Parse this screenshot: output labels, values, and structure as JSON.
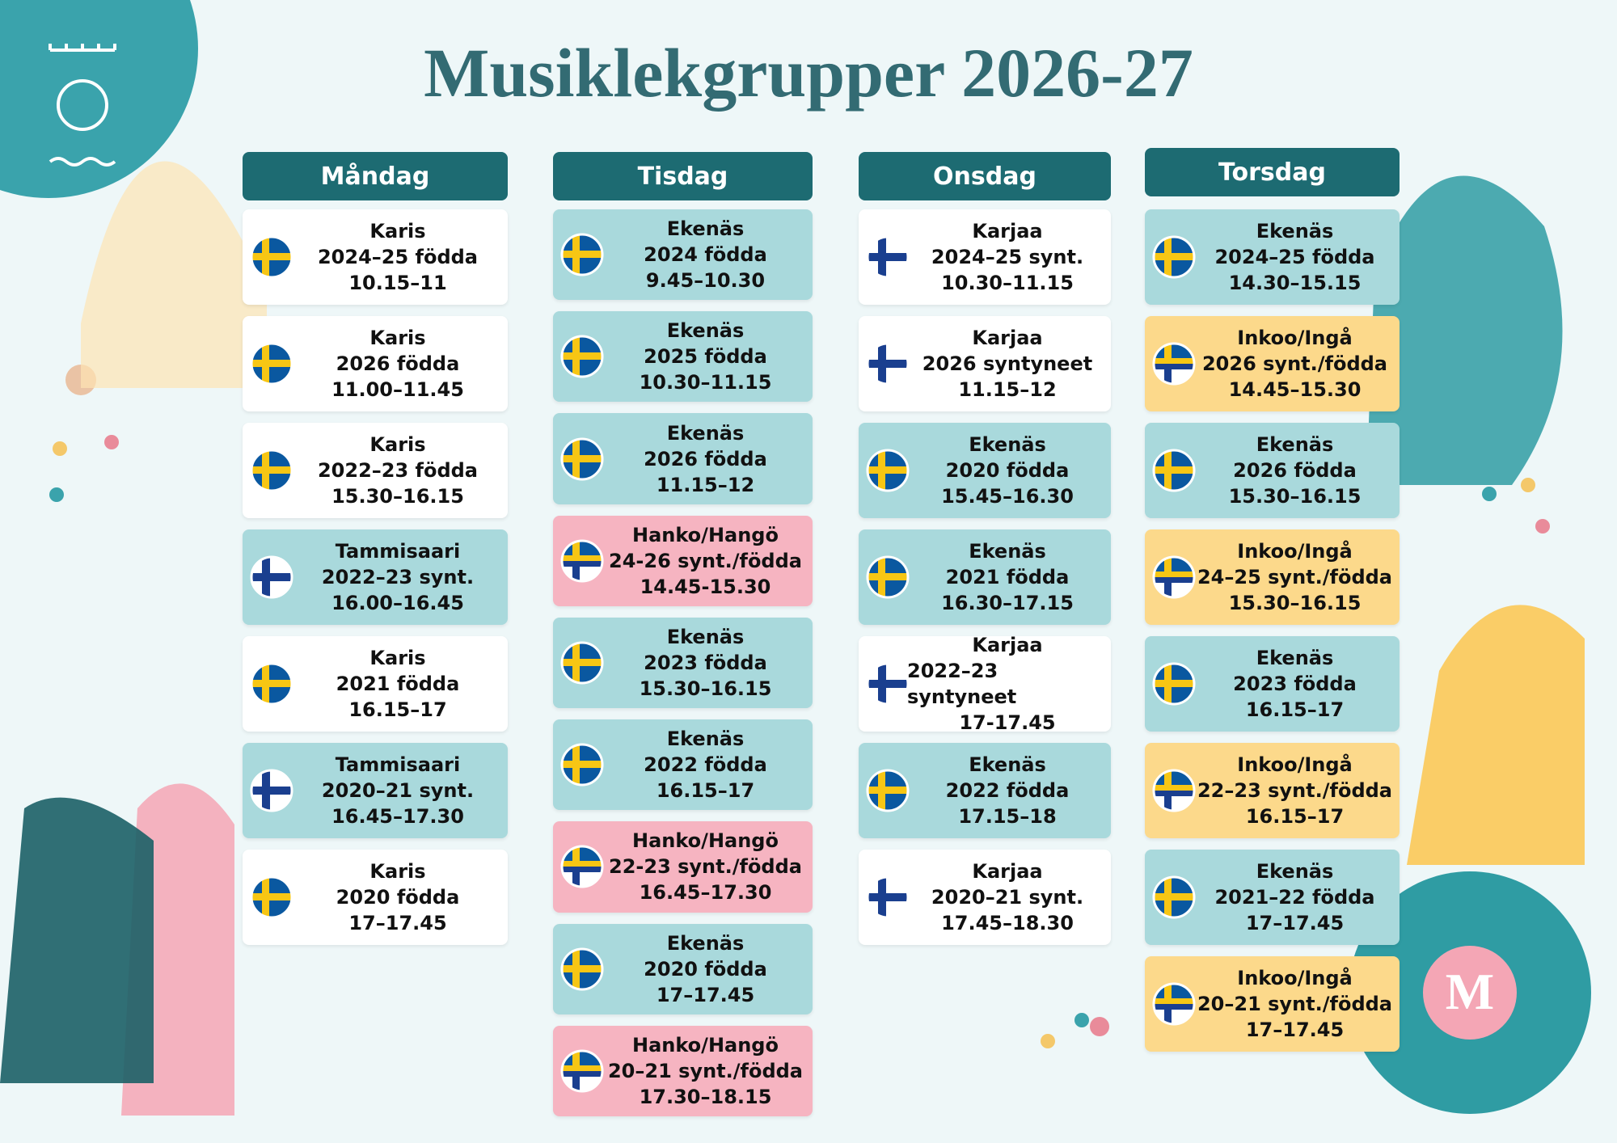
{
  "title": "Musiklekgrupper 2026-27",
  "logo_letter": "M",
  "days": [
    {
      "name": "Måndag",
      "groups": [
        {
          "place": "Karis",
          "group": "2024–25 födda",
          "time": "10.15–11",
          "flag": "sv",
          "color": "#ffffff"
        },
        {
          "place": "Karis",
          "group": "2026 födda",
          "time": "11.00–11.45",
          "flag": "sv",
          "color": "#ffffff"
        },
        {
          "place": "Karis",
          "group": "2022–23 födda",
          "time": "15.30–16.15",
          "flag": "sv",
          "color": "#ffffff"
        },
        {
          "place": "Tammisaari",
          "group": "2022–23 synt.",
          "time": "16.00–16.45",
          "flag": "fi",
          "color": "#a9d9dc"
        },
        {
          "place": "Karis",
          "group": "2021 födda",
          "time": "16.15–17",
          "flag": "sv",
          "color": "#ffffff"
        },
        {
          "place": "Tammisaari",
          "group": "2020–21 synt.",
          "time": "16.45–17.30",
          "flag": "fi",
          "color": "#a9d9dc"
        },
        {
          "place": "Karis",
          "group": "2020 födda",
          "time": "17–17.45",
          "flag": "sv",
          "color": "#ffffff"
        }
      ]
    },
    {
      "name": "Tisdag",
      "groups": [
        {
          "place": "Ekenäs",
          "group": "2024 födda",
          "time": "9.45–10.30",
          "flag": "sv",
          "color": "#a9d9dc"
        },
        {
          "place": "Ekenäs",
          "group": "2025 födda",
          "time": "10.30–11.15",
          "flag": "sv",
          "color": "#a9d9dc"
        },
        {
          "place": "Ekenäs",
          "group": "2026 födda",
          "time": "11.15–12",
          "flag": "sv",
          "color": "#a9d9dc"
        },
        {
          "place": "Hanko/Hangö",
          "group": "24-26 synt./födda",
          "time": "14.45-15.30",
          "flag": "mixed",
          "color": "#f6b4c1"
        },
        {
          "place": "Ekenäs",
          "group": "2023 födda",
          "time": "15.30–16.15",
          "flag": "sv",
          "color": "#a9d9dc"
        },
        {
          "place": "Ekenäs",
          "group": "2022 födda",
          "time": "16.15–17",
          "flag": "sv",
          "color": "#a9d9dc"
        },
        {
          "place": "Hanko/Hangö",
          "group": "22-23 synt./födda",
          "time": "16.45–17.30",
          "flag": "mixed",
          "color": "#f6b4c1"
        },
        {
          "place": "Ekenäs",
          "group": "2020 födda",
          "time": "17–17.45",
          "flag": "sv",
          "color": "#a9d9dc"
        },
        {
          "place": "Hanko/Hangö",
          "group": "20–21 synt./födda",
          "time": "17.30–18.15",
          "flag": "mixed",
          "color": "#f6b4c1"
        }
      ]
    },
    {
      "name": "Onsdag",
      "groups": [
        {
          "place": "Karjaa",
          "group": "2024–25 synt.",
          "time": "10.30–11.15",
          "flag": "fi",
          "color": "#ffffff"
        },
        {
          "place": "Karjaa",
          "group": "2026 syntyneet",
          "time": "11.15–12",
          "flag": "fi",
          "color": "#ffffff"
        },
        {
          "place": "Ekenäs",
          "group": "2020 födda",
          "time": "15.45–16.30",
          "flag": "sv",
          "color": "#a9d9dc"
        },
        {
          "place": "Ekenäs",
          "group": "2021 födda",
          "time": "16.30–17.15",
          "flag": "sv",
          "color": "#a9d9dc"
        },
        {
          "place": "Karjaa",
          "group": "2022–23 syntyneet",
          "time": "17-17.45",
          "flag": "fi",
          "color": "#ffffff"
        },
        {
          "place": "Ekenäs",
          "group": "2022 födda",
          "time": "17.15–18",
          "flag": "sv",
          "color": "#a9d9dc"
        },
        {
          "place": "Karjaa",
          "group": "2020–21 synt.",
          "time": "17.45–18.30",
          "flag": "fi",
          "color": "#ffffff"
        }
      ]
    },
    {
      "name": "Torsdag",
      "groups": [
        {
          "place": "Ekenäs",
          "group": "2024–25 födda",
          "time": "14.30–15.15",
          "flag": "sv",
          "color": "#a9d9dc"
        },
        {
          "place": "Inkoo/Ingå",
          "group": "2026 synt./födda",
          "time": "14.45–15.30",
          "flag": "mixed",
          "color": "#fcd98b"
        },
        {
          "place": "Ekenäs",
          "group": "2026 födda",
          "time": "15.30–16.15",
          "flag": "sv",
          "color": "#a9d9dc"
        },
        {
          "place": "Inkoo/Ingå",
          "group": "24–25 synt./födda",
          "time": "15.30–16.15",
          "flag": "mixed",
          "color": "#fcd98b"
        },
        {
          "place": "Ekenäs",
          "group": "2023 födda",
          "time": "16.15–17",
          "flag": "sv",
          "color": "#a9d9dc"
        },
        {
          "place": "Inkoo/Ingå",
          "group": "22–23 synt./födda",
          "time": "16.15–17",
          "flag": "mixed",
          "color": "#fcd98b"
        },
        {
          "place": "Ekenäs",
          "group": "2021–22 födda",
          "time": "17–17.45",
          "flag": "sv",
          "color": "#a9d9dc"
        },
        {
          "place": "Inkoo/Ingå",
          "group": "20–21 synt./födda",
          "time": "17–17.45",
          "flag": "mixed",
          "color": "#fcd98b"
        }
      ]
    }
  ]
}
